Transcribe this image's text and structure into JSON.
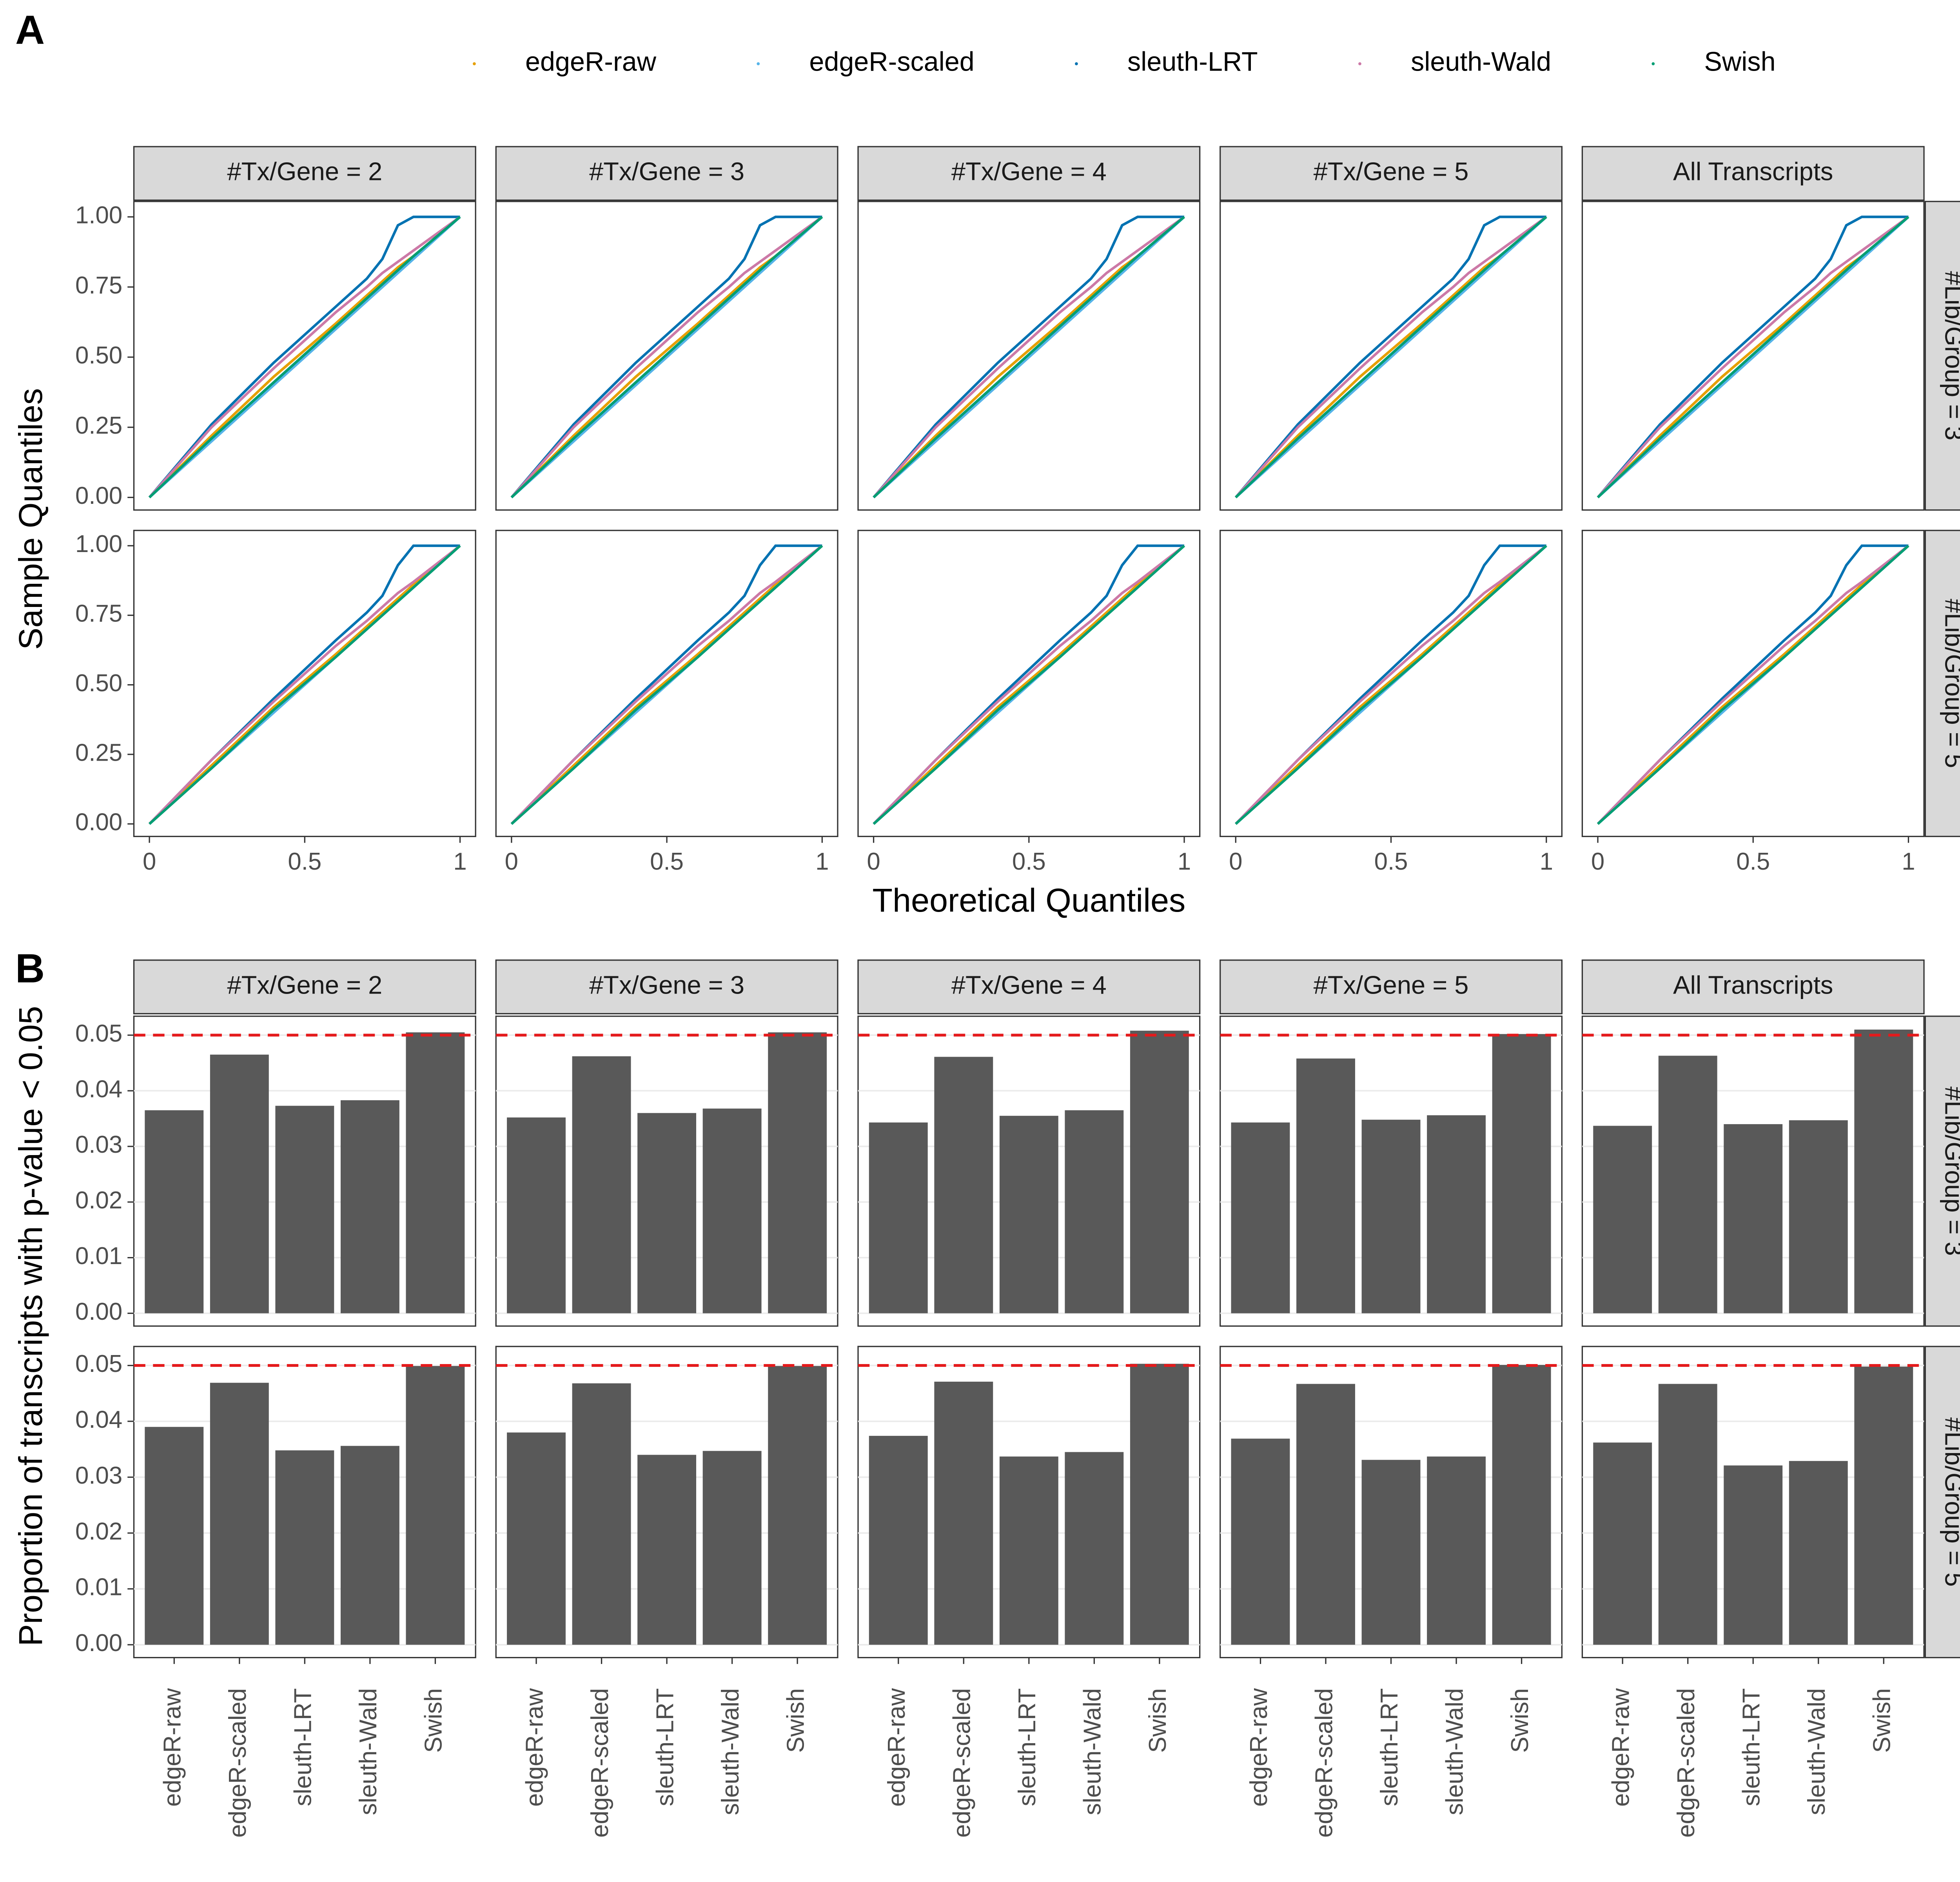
{
  "chart_data": [
    {
      "type": "line",
      "panel_label": "A",
      "x_label": "Theoretical Quantiles",
      "y_label": "Sample Quantiles",
      "facet_cols": [
        "#Tx/Gene = 2",
        "#Tx/Gene = 3",
        "#Tx/Gene = 4",
        "#Tx/Gene = 5",
        "All Transcripts"
      ],
      "facet_rows": [
        "#Lib/Group = 3",
        "#Lib/Group = 5"
      ],
      "xlim": [
        -0.05,
        1.05
      ],
      "ylim": [
        -0.045,
        1.055
      ],
      "xticks": [
        0,
        0.5,
        1
      ],
      "yticks": [
        {
          "value": 0,
          "label": "0.00"
        },
        0.25,
        {
          "value": 0.5,
          "label": "0.50"
        },
        0.75,
        {
          "value": 1,
          "label": "1.00"
        }
      ],
      "grid": false,
      "legend": "top",
      "x": [
        0,
        0.2,
        0.4,
        0.6,
        0.7,
        0.75,
        0.8,
        0.85,
        1
      ],
      "series": [
        {
          "name": "edgeR-raw",
          "color": "#E69F00",
          "values": [
            [
              0,
              0.22,
              0.43,
              0.62,
              0.72,
              0.77,
              0.82,
              0.86,
              1
            ],
            [
              0,
              0.22,
              0.43,
              0.62,
              0.72,
              0.77,
              0.82,
              0.86,
              1
            ],
            [
              0,
              0.22,
              0.43,
              0.62,
              0.72,
              0.77,
              0.82,
              0.86,
              1
            ],
            [
              0,
              0.22,
              0.43,
              0.62,
              0.72,
              0.77,
              0.82,
              0.86,
              1
            ],
            [
              0,
              0.22,
              0.43,
              0.62,
              0.72,
              0.77,
              0.82,
              0.86,
              1
            ],
            [
              0,
              0.21,
              0.42,
              0.61,
              0.71,
              0.76,
              0.81,
              0.86,
              1
            ],
            [
              0,
              0.21,
              0.42,
              0.61,
              0.71,
              0.76,
              0.81,
              0.86,
              1
            ],
            [
              0,
              0.21,
              0.42,
              0.61,
              0.71,
              0.76,
              0.81,
              0.86,
              1
            ],
            [
              0,
              0.21,
              0.42,
              0.61,
              0.71,
              0.76,
              0.81,
              0.86,
              1
            ],
            [
              0,
              0.21,
              0.42,
              0.61,
              0.71,
              0.76,
              0.81,
              0.86,
              1
            ]
          ]
        },
        {
          "name": "edgeR-scaled",
          "color": "#56B4E9",
          "values": [
            [
              0,
              0.2,
              0.4,
              0.6,
              0.7,
              0.75,
              0.8,
              0.85,
              1
            ],
            [
              0,
              0.2,
              0.4,
              0.6,
              0.7,
              0.75,
              0.8,
              0.85,
              1
            ],
            [
              0,
              0.2,
              0.4,
              0.6,
              0.7,
              0.75,
              0.8,
              0.85,
              1
            ],
            [
              0,
              0.2,
              0.4,
              0.6,
              0.7,
              0.75,
              0.8,
              0.85,
              1
            ],
            [
              0,
              0.2,
              0.4,
              0.6,
              0.7,
              0.75,
              0.8,
              0.85,
              1
            ],
            [
              0,
              0.2,
              0.4,
              0.6,
              0.7,
              0.75,
              0.8,
              0.85,
              1
            ],
            [
              0,
              0.2,
              0.4,
              0.6,
              0.7,
              0.75,
              0.8,
              0.85,
              1
            ],
            [
              0,
              0.2,
              0.4,
              0.6,
              0.7,
              0.75,
              0.8,
              0.85,
              1
            ],
            [
              0,
              0.2,
              0.4,
              0.6,
              0.7,
              0.75,
              0.8,
              0.85,
              1
            ],
            [
              0,
              0.2,
              0.4,
              0.6,
              0.7,
              0.75,
              0.8,
              0.85,
              1
            ]
          ]
        },
        {
          "name": "sleuth-LRT",
          "color": "#0072B2",
          "values": [
            [
              0,
              0.26,
              0.48,
              0.68,
              0.78,
              0.85,
              0.97,
              1,
              1
            ],
            [
              0,
              0.26,
              0.48,
              0.68,
              0.78,
              0.85,
              0.97,
              1,
              1
            ],
            [
              0,
              0.26,
              0.48,
              0.68,
              0.78,
              0.85,
              0.97,
              1,
              1
            ],
            [
              0,
              0.26,
              0.48,
              0.68,
              0.78,
              0.85,
              0.97,
              1,
              1
            ],
            [
              0,
              0.26,
              0.48,
              0.68,
              0.78,
              0.85,
              0.97,
              1,
              1
            ],
            [
              0,
              0.23,
              0.45,
              0.66,
              0.76,
              0.82,
              0.93,
              1,
              1
            ],
            [
              0,
              0.23,
              0.45,
              0.66,
              0.76,
              0.82,
              0.93,
              1,
              1
            ],
            [
              0,
              0.23,
              0.45,
              0.66,
              0.76,
              0.82,
              0.93,
              1,
              1
            ],
            [
              0,
              0.23,
              0.45,
              0.66,
              0.76,
              0.82,
              0.93,
              1,
              1
            ],
            [
              0,
              0.23,
              0.45,
              0.66,
              0.76,
              0.82,
              0.93,
              1,
              1
            ]
          ]
        },
        {
          "name": "sleuth-Wald",
          "color": "#CC79A7",
          "values": [
            [
              0,
              0.25,
              0.46,
              0.66,
              0.75,
              0.8,
              0.84,
              0.88,
              1
            ],
            [
              0,
              0.25,
              0.46,
              0.66,
              0.75,
              0.8,
              0.84,
              0.88,
              1
            ],
            [
              0,
              0.25,
              0.46,
              0.66,
              0.75,
              0.8,
              0.84,
              0.88,
              1
            ],
            [
              0,
              0.25,
              0.46,
              0.66,
              0.75,
              0.8,
              0.84,
              0.88,
              1
            ],
            [
              0,
              0.25,
              0.46,
              0.66,
              0.75,
              0.8,
              0.84,
              0.88,
              1
            ],
            [
              0,
              0.23,
              0.44,
              0.64,
              0.73,
              0.78,
              0.83,
              0.87,
              1
            ],
            [
              0,
              0.23,
              0.44,
              0.64,
              0.73,
              0.78,
              0.83,
              0.87,
              1
            ],
            [
              0,
              0.23,
              0.44,
              0.64,
              0.73,
              0.78,
              0.83,
              0.87,
              1
            ],
            [
              0,
              0.23,
              0.44,
              0.64,
              0.73,
              0.78,
              0.83,
              0.87,
              1
            ],
            [
              0,
              0.23,
              0.44,
              0.64,
              0.73,
              0.78,
              0.83,
              0.87,
              1
            ]
          ]
        },
        {
          "name": "Swish",
          "color": "#009E73",
          "values": [
            [
              0,
              0.21,
              0.41,
              0.61,
              0.71,
              0.76,
              0.81,
              0.86,
              1
            ],
            [
              0,
              0.21,
              0.41,
              0.61,
              0.71,
              0.76,
              0.81,
              0.86,
              1
            ],
            [
              0,
              0.21,
              0.41,
              0.61,
              0.71,
              0.76,
              0.81,
              0.86,
              1
            ],
            [
              0,
              0.21,
              0.41,
              0.61,
              0.71,
              0.76,
              0.81,
              0.86,
              1
            ],
            [
              0,
              0.21,
              0.41,
              0.61,
              0.71,
              0.76,
              0.81,
              0.86,
              1
            ],
            [
              0,
              0.2,
              0.41,
              0.6,
              0.7,
              0.75,
              0.8,
              0.85,
              1
            ],
            [
              0,
              0.2,
              0.41,
              0.6,
              0.7,
              0.75,
              0.8,
              0.85,
              1
            ],
            [
              0,
              0.2,
              0.41,
              0.6,
              0.7,
              0.75,
              0.8,
              0.85,
              1
            ],
            [
              0,
              0.2,
              0.41,
              0.6,
              0.7,
              0.75,
              0.8,
              0.85,
              1
            ],
            [
              0,
              0.2,
              0.41,
              0.6,
              0.7,
              0.75,
              0.8,
              0.85,
              1
            ]
          ]
        }
      ]
    },
    {
      "type": "bar",
      "panel_label": "B",
      "y_label": "Proportion of transcripts with p-value < 0.05",
      "facet_cols": [
        "#Tx/Gene = 2",
        "#Tx/Gene = 3",
        "#Tx/Gene = 4",
        "#Tx/Gene = 5",
        "All Transcripts"
      ],
      "facet_rows": [
        "#Lib/Group = 3",
        "#Lib/Group = 5"
      ],
      "categories": [
        "edgeR-raw",
        "edgeR-scaled",
        "sleuth-LRT",
        "sleuth-Wald",
        "Swish"
      ],
      "ylim": [
        -0.0023,
        0.0534
      ],
      "yticks": [
        {
          "value": 0,
          "label": "0.00"
        },
        0.01,
        0.02,
        0.03,
        0.04,
        0.05
      ],
      "grid": true,
      "hline": 0.05,
      "hline_color": "#E41A1C",
      "color": "#595959",
      "values": [
        [
          0.0365,
          0.0465,
          0.0373,
          0.0383,
          0.0505
        ],
        [
          0.0352,
          0.0462,
          0.036,
          0.0368,
          0.0505
        ],
        [
          0.0343,
          0.0461,
          0.0355,
          0.0365,
          0.0508
        ],
        [
          0.0343,
          0.0458,
          0.0348,
          0.0356,
          0.0502
        ],
        [
          0.0337,
          0.0463,
          0.034,
          0.0347,
          0.051
        ],
        [
          0.039,
          0.0469,
          0.0348,
          0.0356,
          0.0499
        ],
        [
          0.038,
          0.0468,
          0.034,
          0.0347,
          0.0499
        ],
        [
          0.0374,
          0.0471,
          0.0337,
          0.0345,
          0.0503
        ],
        [
          0.0369,
          0.0467,
          0.0331,
          0.0337,
          0.0501
        ],
        [
          0.0362,
          0.0467,
          0.0321,
          0.0329,
          0.0498
        ]
      ]
    }
  ]
}
